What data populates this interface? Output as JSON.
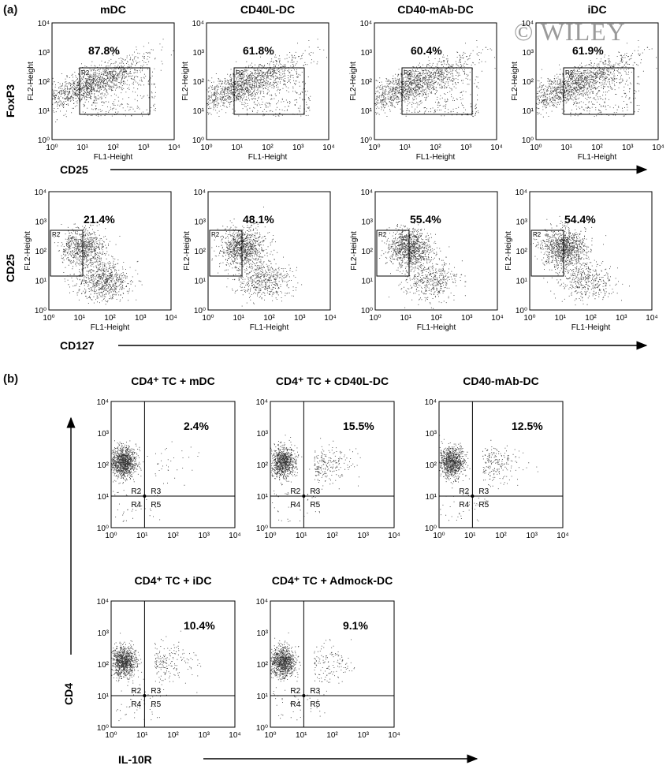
{
  "watermark": "© WILEY",
  "panel_a": {
    "label": "(a)",
    "row1": {
      "y_axis_label": "FoxP3",
      "x_axis_label": "CD25",
      "panels": [
        {
          "title": "mDC",
          "percent": "87.8%"
        },
        {
          "title": "CD40L-DC",
          "percent": "61.8%"
        },
        {
          "title": "CD40-mAb-DC",
          "percent": "60.4%"
        },
        {
          "title": "iDC",
          "percent": "61.9%"
        }
      ]
    },
    "row2": {
      "y_axis_label": "CD25",
      "x_axis_label": "CD127",
      "panels": [
        {
          "title": "",
          "percent": "21.4%"
        },
        {
          "title": "",
          "percent": "48.1%"
        },
        {
          "title": "",
          "percent": "55.4%"
        },
        {
          "title": "",
          "percent": "54.4%"
        }
      ]
    },
    "inner_ylabel": "FL2-Height",
    "inner_xlabel": "FL1-Height",
    "gate_label": "R2"
  },
  "panel_b": {
    "label": "(b)",
    "y_axis_label": "CD4",
    "x_axis_label": "IL-10R",
    "quadrant_labels": [
      "R2",
      "R3",
      "R4",
      "R5"
    ],
    "panels": [
      {
        "title": "CD4⁺ TC + mDC",
        "percent": "2.4%"
      },
      {
        "title": "CD4⁺ TC + CD40L-DC",
        "percent": "15.5%"
      },
      {
        "title": "CD40-mAb-DC",
        "percent": "12.5%"
      },
      {
        "title": "CD4⁺ TC + iDC",
        "percent": "10.4%"
      },
      {
        "title": "CD4⁺ TC + Admock-DC",
        "percent": "9.1%"
      }
    ]
  },
  "tick_labels": [
    "10⁰",
    "10¹",
    "10²",
    "10³",
    "10⁴"
  ]
}
